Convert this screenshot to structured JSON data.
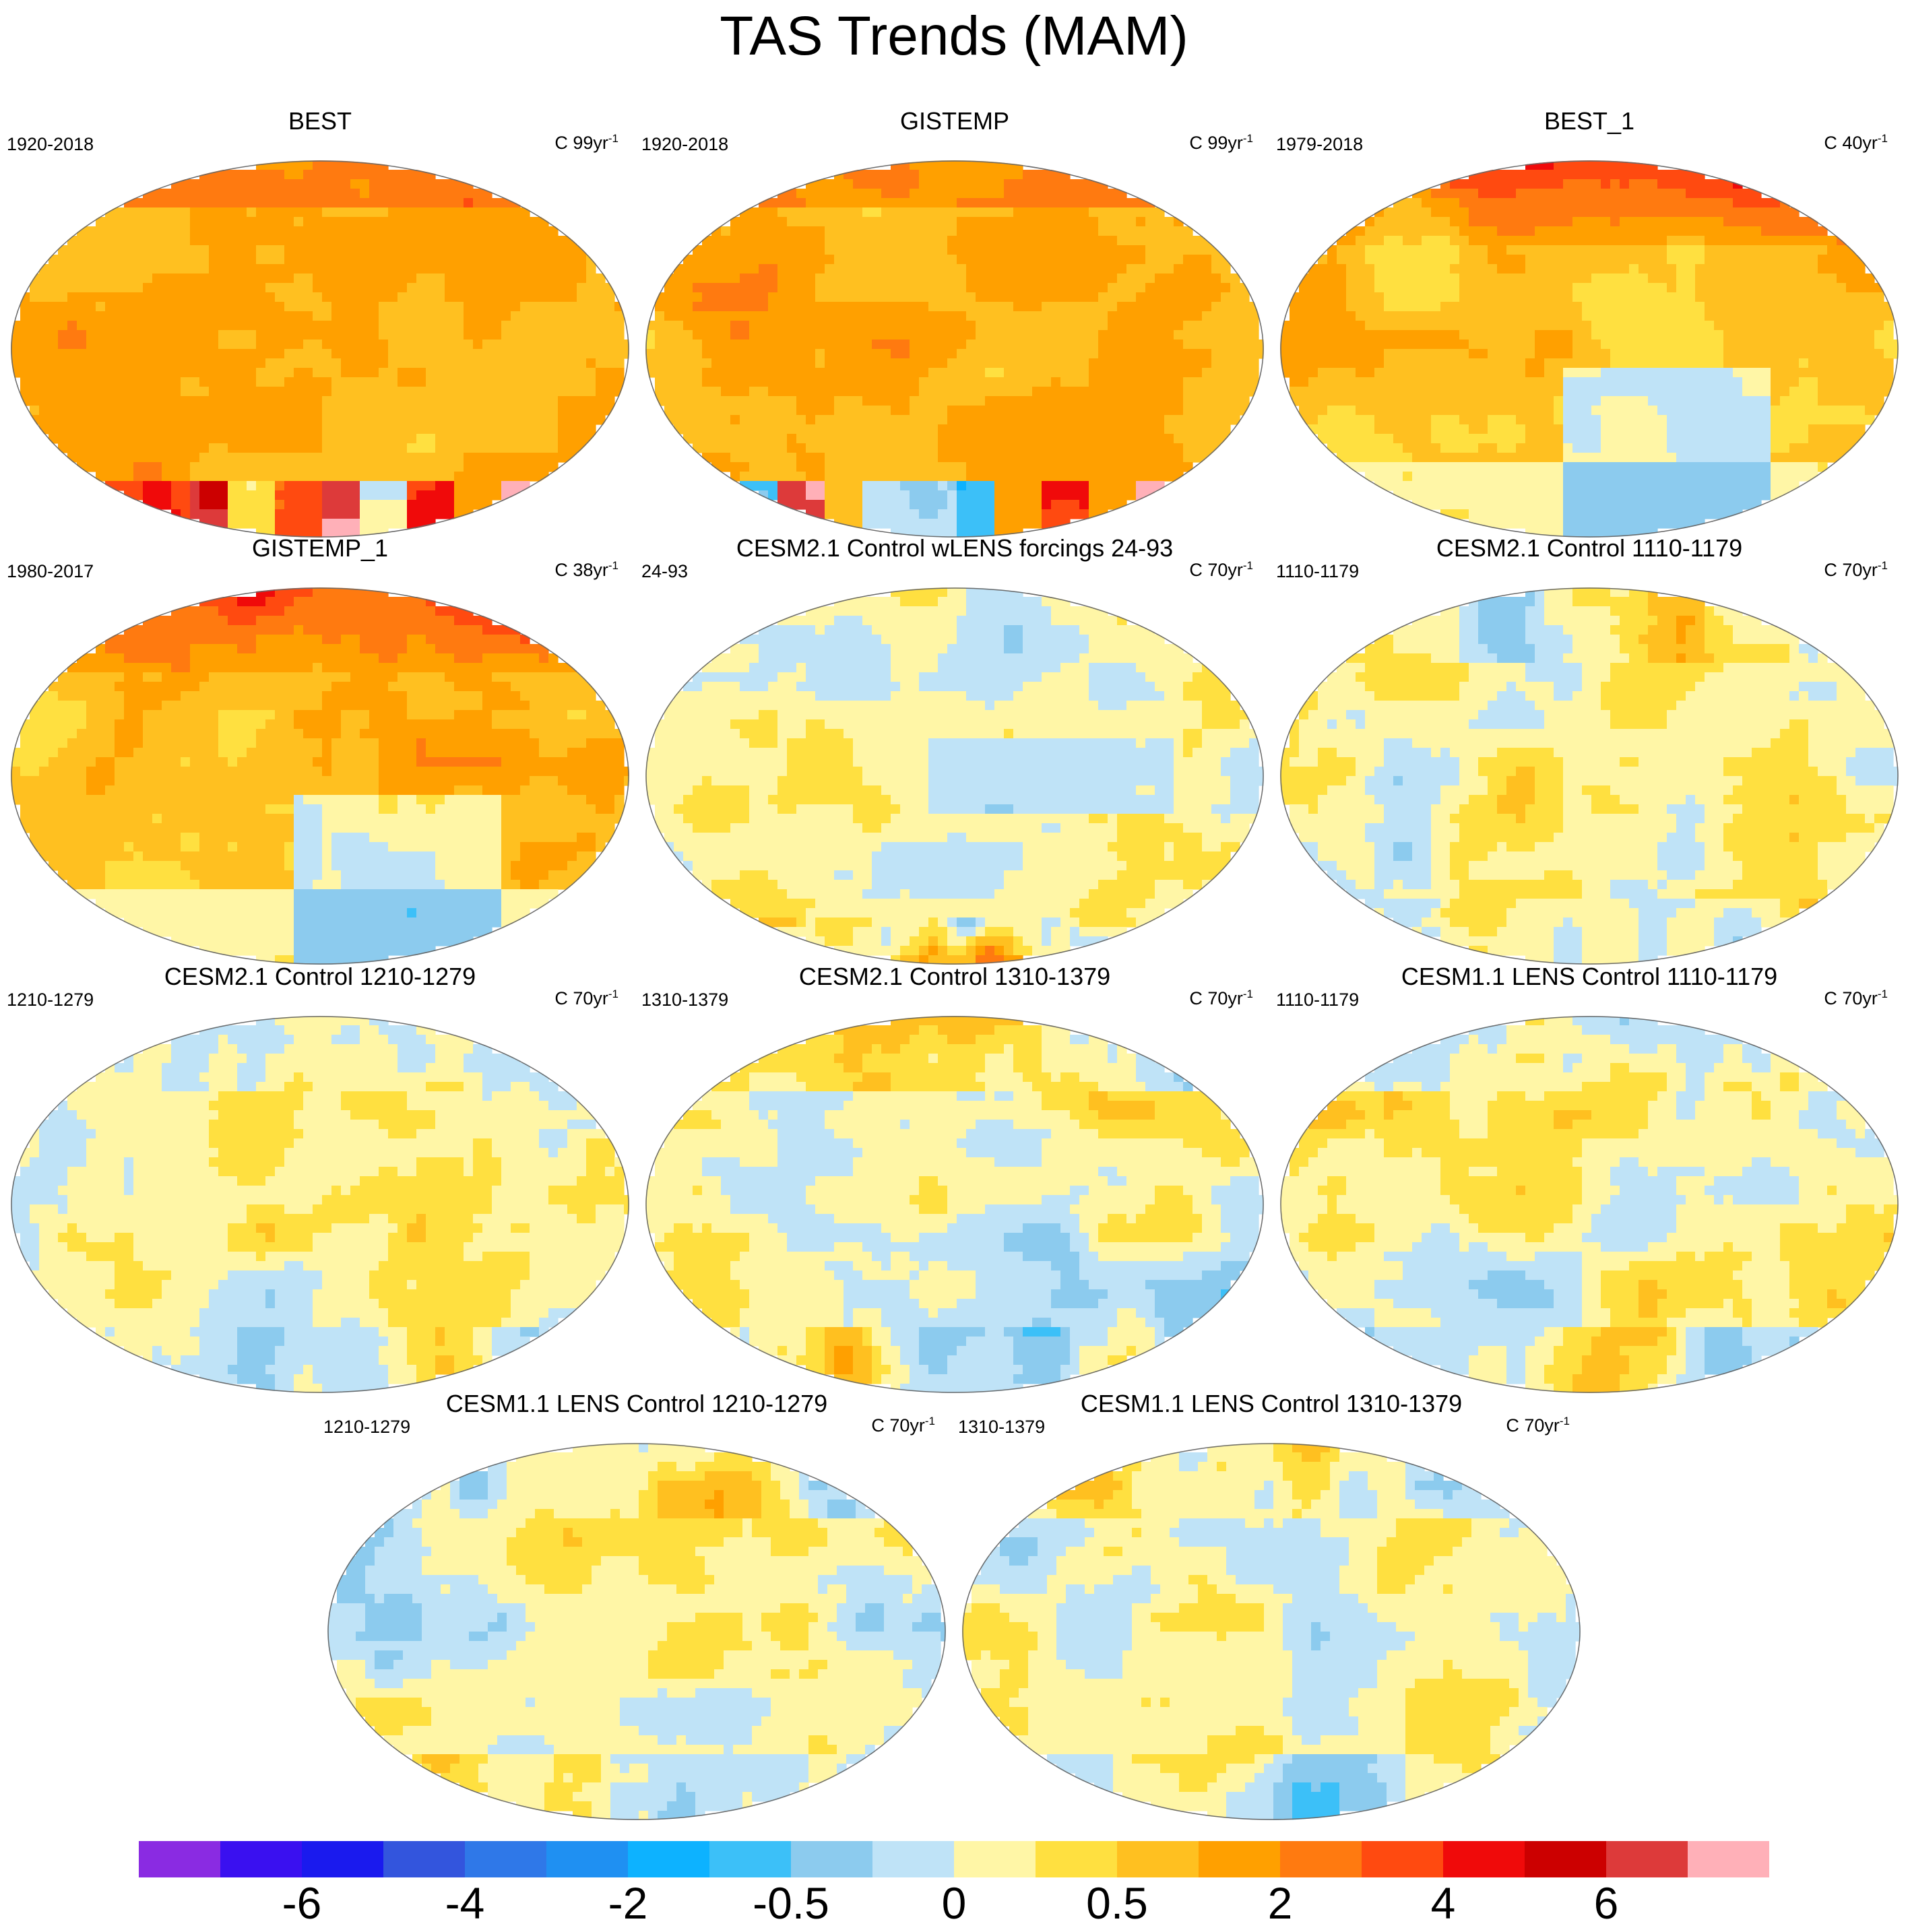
{
  "figure": {
    "title": "TAS Trends (MAM)"
  },
  "panels": [
    {
      "title": "BEST",
      "period": "1920-2018",
      "unit_prefix": "C 99yr",
      "unit_exp": "-1",
      "pattern": "obs_long"
    },
    {
      "title": "GISTEMP",
      "period": "1920-2018",
      "unit_prefix": "C 99yr",
      "unit_exp": "-1",
      "pattern": "obs_long"
    },
    {
      "title": "BEST_1",
      "period": "1979-2018",
      "unit_prefix": "C 40yr",
      "unit_exp": "-1",
      "pattern": "obs_short"
    },
    {
      "title": "GISTEMP_1",
      "period": "1980-2017",
      "unit_prefix": "C 38yr",
      "unit_exp": "-1",
      "pattern": "obs_short"
    },
    {
      "title": "CESM2.1 Control wLENS forcings 24-93",
      "period": "24-93",
      "unit_prefix": "C 70yr",
      "unit_exp": "-1",
      "pattern": "model_warm"
    },
    {
      "title": "CESM2.1 Control 1110-1179",
      "period": "1110-1179",
      "unit_prefix": "C 70yr",
      "unit_exp": "-1",
      "pattern": "model_a"
    },
    {
      "title": "CESM2.1 Control 1210-1279",
      "period": "1210-1279",
      "unit_prefix": "C 70yr",
      "unit_exp": "-1",
      "pattern": "model_b"
    },
    {
      "title": "CESM2.1 Control 1310-1379",
      "period": "1310-1379",
      "unit_prefix": "C 70yr",
      "unit_exp": "-1",
      "pattern": "model_c"
    },
    {
      "title": "CESM1.1 LENS Control 1110-1179",
      "period": "1110-1179",
      "unit_prefix": "C 70yr",
      "unit_exp": "-1",
      "pattern": "model_d"
    },
    {
      "title": "CESM1.1 LENS Control 1210-1279",
      "period": "1210-1279",
      "unit_prefix": "C 70yr",
      "unit_exp": "-1",
      "pattern": "model_e"
    },
    {
      "title": "CESM1.1 LENS Control 1310-1379",
      "period": "1310-1379",
      "unit_prefix": "C 70yr",
      "unit_exp": "-1",
      "pattern": "model_f"
    }
  ],
  "colorbar": {
    "colors": [
      "#8a2be2",
      "#3a10f0",
      "#1a1aee",
      "#3355dd",
      "#2f78e8",
      "#1f90f2",
      "#0db2ff",
      "#3cc0f8",
      "#8ccbee",
      "#bfe3f7",
      "#fff6a6",
      "#ffe040",
      "#ffc020",
      "#ffa000",
      "#ff7a10",
      "#ff4a10",
      "#f00a0a",
      "#cc0000",
      "#dd3a3a",
      "#ffb0b8"
    ],
    "tick_labels": [
      "-6",
      "-4",
      "-2",
      "-0.5",
      "0",
      "0.5",
      "2",
      "4",
      "6"
    ],
    "tick_boundaries": [
      2,
      4,
      6,
      8,
      10,
      12,
      14,
      16,
      18
    ]
  }
}
